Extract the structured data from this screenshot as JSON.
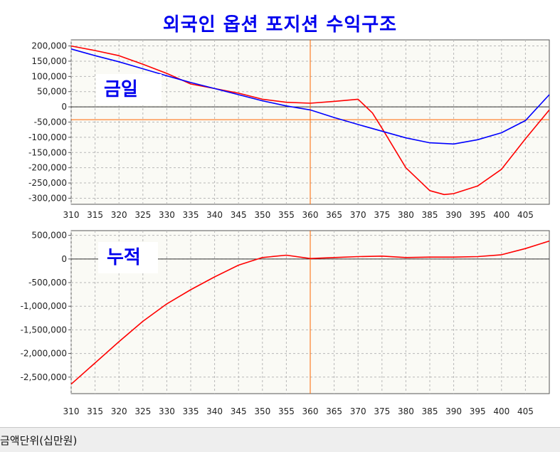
{
  "title": "외국인 옵션 포지션 수익구조",
  "footer": "금액단위(십만원)",
  "colors": {
    "series_a": "#ff0000",
    "series_b": "#0000ff",
    "marker": "#ff6600",
    "title": "#0000ee"
  },
  "chart_data": [
    {
      "type": "line",
      "panel_label": "금일",
      "xlim": [
        310,
        410
      ],
      "ylim": [
        -320000,
        220000
      ],
      "x_ticks": [
        310,
        315,
        320,
        325,
        330,
        335,
        340,
        345,
        350,
        355,
        360,
        365,
        370,
        375,
        380,
        385,
        390,
        395,
        400,
        405
      ],
      "y_ticks": [
        200000,
        150000,
        100000,
        50000,
        0,
        -50000,
        -100000,
        -150000,
        -200000,
        -250000,
        -300000
      ],
      "y_tick_labels": [
        "200,000",
        "150,000",
        "100,000",
        "50,000",
        "0",
        "-50,000",
        "-100,000",
        "-150,000",
        "-200,000",
        "-250,000",
        "-300,000"
      ],
      "grid": true,
      "reference_x": 360,
      "reference_y": -42000,
      "series": [
        {
          "color": "#ff0000",
          "x": [
            310,
            315,
            320,
            325,
            330,
            335,
            340,
            345,
            350,
            355,
            360,
            365,
            370,
            373,
            375,
            380,
            385,
            388,
            390,
            395,
            400,
            405,
            410
          ],
          "y": [
            200000,
            185000,
            168000,
            140000,
            110000,
            75000,
            60000,
            45000,
            25000,
            15000,
            12000,
            18000,
            25000,
            -20000,
            -70000,
            -200000,
            -275000,
            -288000,
            -285000,
            -260000,
            -205000,
            -105000,
            -10000
          ]
        },
        {
          "color": "#0000ff",
          "x": [
            310,
            315,
            320,
            325,
            330,
            335,
            340,
            345,
            350,
            355,
            360,
            365,
            370,
            375,
            380,
            385,
            390,
            395,
            400,
            405,
            410
          ],
          "y": [
            190000,
            168000,
            148000,
            125000,
            102000,
            80000,
            60000,
            40000,
            20000,
            3000,
            -10000,
            -35000,
            -58000,
            -80000,
            -102000,
            -118000,
            -122000,
            -108000,
            -85000,
            -45000,
            40000
          ]
        }
      ]
    },
    {
      "type": "line",
      "panel_label": "누적",
      "xlim": [
        310,
        410
      ],
      "ylim": [
        -2850000,
        600000
      ],
      "x_ticks": [
        310,
        315,
        320,
        325,
        330,
        335,
        340,
        345,
        350,
        355,
        360,
        365,
        370,
        375,
        380,
        385,
        390,
        395,
        400,
        405
      ],
      "y_ticks": [
        500000,
        0,
        -500000,
        -1000000,
        -1500000,
        -2000000,
        -2500000
      ],
      "y_tick_labels": [
        "500,000",
        "0",
        "-500,000",
        "-1,000,000",
        "-1,500,000",
        "-2,000,000",
        "-2,500,000"
      ],
      "grid": true,
      "reference_x": 360,
      "reference_y": 0,
      "series": [
        {
          "color": "#ff0000",
          "x": [
            310,
            315,
            320,
            325,
            330,
            335,
            340,
            345,
            350,
            355,
            360,
            365,
            370,
            375,
            380,
            385,
            390,
            395,
            400,
            405,
            410
          ],
          "y": [
            -2650000,
            -2200000,
            -1750000,
            -1320000,
            -950000,
            -650000,
            -380000,
            -130000,
            30000,
            80000,
            10000,
            30000,
            50000,
            60000,
            30000,
            40000,
            40000,
            50000,
            90000,
            220000,
            380000
          ]
        }
      ]
    }
  ]
}
